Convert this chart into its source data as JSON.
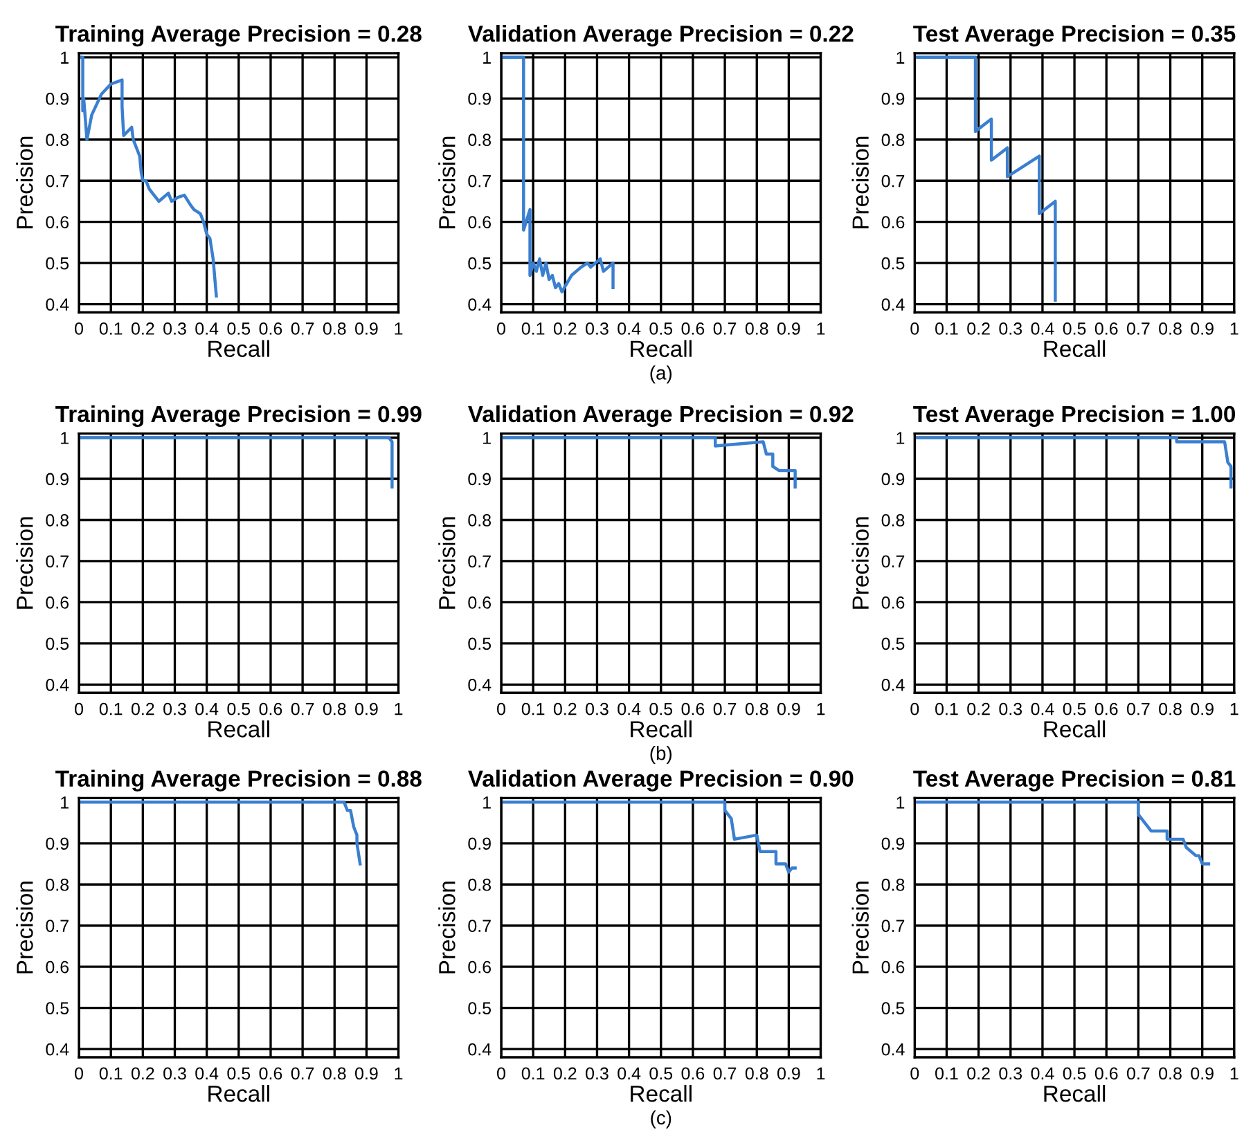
{
  "chart_data": [
    {
      "type": "line",
      "title": "Training Average Precision = 0.28",
      "xlabel": "Recall",
      "ylabel": "Precision",
      "xlim": [
        0,
        1
      ],
      "ylim": [
        0.38,
        1.01
      ],
      "xticks": [
        0,
        0.1,
        0.2,
        0.3,
        0.4,
        0.5,
        0.6,
        0.7,
        0.8,
        0.9,
        1
      ],
      "yticks": [
        0.4,
        0.5,
        0.6,
        0.7,
        0.8,
        0.9,
        1
      ],
      "grid": true,
      "legend": false,
      "series": [
        {
          "color": "#3a7fd0",
          "x": [
            0,
            0.012,
            0.012,
            0.015,
            0.02,
            0.025,
            0.04,
            0.07,
            0.1,
            0.135,
            0.135,
            0.14,
            0.165,
            0.17,
            0.19,
            0.195,
            0.2,
            0.21,
            0.22,
            0.25,
            0.28,
            0.29,
            0.31,
            0.33,
            0.35,
            0.36,
            0.38,
            0.39,
            0.4,
            0.41,
            0.42,
            0.43
          ],
          "values": [
            1,
            1,
            0.87,
            0.9,
            0.85,
            0.8,
            0.86,
            0.91,
            0.935,
            0.945,
            0.88,
            0.81,
            0.83,
            0.8,
            0.76,
            0.72,
            0.7,
            0.7,
            0.68,
            0.65,
            0.67,
            0.65,
            0.66,
            0.665,
            0.64,
            0.63,
            0.62,
            0.6,
            0.57,
            0.56,
            0.51,
            0.42
          ]
        }
      ]
    },
    {
      "type": "line",
      "title": "Validation Average Precision = 0.22",
      "xlabel": "Recall",
      "ylabel": "Precision",
      "xlim": [
        0,
        1
      ],
      "ylim": [
        0.38,
        1.01
      ],
      "xticks": [
        0,
        0.1,
        0.2,
        0.3,
        0.4,
        0.5,
        0.6,
        0.7,
        0.8,
        0.9,
        1
      ],
      "yticks": [
        0.4,
        0.5,
        0.6,
        0.7,
        0.8,
        0.9,
        1
      ],
      "grid": true,
      "legend": false,
      "annotations": [
        "(a)"
      ],
      "series": [
        {
          "color": "#3a7fd0",
          "x": [
            0,
            0.07,
            0.07,
            0.09,
            0.09,
            0.1,
            0.11,
            0.12,
            0.13,
            0.14,
            0.15,
            0.16,
            0.17,
            0.18,
            0.19,
            0.22,
            0.25,
            0.27,
            0.28,
            0.31,
            0.32,
            0.35,
            0.35
          ],
          "values": [
            1,
            1,
            0.58,
            0.63,
            0.47,
            0.5,
            0.48,
            0.51,
            0.47,
            0.5,
            0.46,
            0.47,
            0.44,
            0.45,
            0.43,
            0.47,
            0.49,
            0.5,
            0.49,
            0.51,
            0.48,
            0.5,
            0.44
          ]
        }
      ]
    },
    {
      "type": "line",
      "title": "Test Average Precision = 0.35",
      "xlabel": "Recall",
      "ylabel": "Precision",
      "xlim": [
        0,
        1
      ],
      "ylim": [
        0.38,
        1.01
      ],
      "xticks": [
        0,
        0.1,
        0.2,
        0.3,
        0.4,
        0.5,
        0.6,
        0.7,
        0.8,
        0.9,
        1
      ],
      "yticks": [
        0.4,
        0.5,
        0.6,
        0.7,
        0.8,
        0.9,
        1
      ],
      "grid": true,
      "legend": false,
      "series": [
        {
          "color": "#3a7fd0",
          "x": [
            0,
            0.19,
            0.19,
            0.24,
            0.24,
            0.29,
            0.29,
            0.39,
            0.39,
            0.44,
            0.44
          ],
          "values": [
            1,
            1,
            0.82,
            0.85,
            0.75,
            0.78,
            0.71,
            0.76,
            0.62,
            0.65,
            0.41
          ]
        }
      ]
    },
    {
      "type": "line",
      "title": "Training Average Precision = 0.99",
      "xlabel": "Recall",
      "ylabel": "Precision",
      "xlim": [
        0,
        1
      ],
      "ylim": [
        0.38,
        1.01
      ],
      "xticks": [
        0,
        0.1,
        0.2,
        0.3,
        0.4,
        0.5,
        0.6,
        0.7,
        0.8,
        0.9,
        1
      ],
      "yticks": [
        0.4,
        0.5,
        0.6,
        0.7,
        0.8,
        0.9,
        1
      ],
      "grid": true,
      "legend": false,
      "series": [
        {
          "color": "#3a7fd0",
          "x": [
            0,
            0.97,
            0.98,
            0.98
          ],
          "values": [
            1,
            1,
            0.99,
            0.88
          ]
        }
      ]
    },
    {
      "type": "line",
      "title": "Validation Average Precision = 0.92",
      "xlabel": "Recall",
      "ylabel": "Precision",
      "xlim": [
        0,
        1
      ],
      "ylim": [
        0.38,
        1.01
      ],
      "xticks": [
        0,
        0.1,
        0.2,
        0.3,
        0.4,
        0.5,
        0.6,
        0.7,
        0.8,
        0.9,
        1
      ],
      "yticks": [
        0.4,
        0.5,
        0.6,
        0.7,
        0.8,
        0.9,
        1
      ],
      "grid": true,
      "legend": false,
      "annotations": [
        "(b)"
      ],
      "series": [
        {
          "color": "#3a7fd0",
          "x": [
            0,
            0.67,
            0.67,
            0.82,
            0.83,
            0.85,
            0.85,
            0.87,
            0.92,
            0.92
          ],
          "values": [
            1,
            1,
            0.98,
            0.99,
            0.96,
            0.96,
            0.93,
            0.92,
            0.92,
            0.88
          ]
        }
      ]
    },
    {
      "type": "line",
      "title": "Test Average Precision = 1.00",
      "xlabel": "Recall",
      "ylabel": "Precision",
      "xlim": [
        0,
        1
      ],
      "ylim": [
        0.38,
        1.01
      ],
      "xticks": [
        0,
        0.1,
        0.2,
        0.3,
        0.4,
        0.5,
        0.6,
        0.7,
        0.8,
        0.9,
        1
      ],
      "yticks": [
        0.4,
        0.5,
        0.6,
        0.7,
        0.8,
        0.9,
        1
      ],
      "grid": true,
      "legend": false,
      "series": [
        {
          "color": "#3a7fd0",
          "x": [
            0,
            0.82,
            0.82,
            0.97,
            0.98,
            0.99,
            0.99
          ],
          "values": [
            1,
            1,
            0.99,
            0.99,
            0.94,
            0.93,
            0.88
          ]
        }
      ]
    },
    {
      "type": "line",
      "title": "Training Average Precision = 0.88",
      "xlabel": "Recall",
      "ylabel": "Precision",
      "xlim": [
        0,
        1
      ],
      "ylim": [
        0.38,
        1.01
      ],
      "xticks": [
        0,
        0.1,
        0.2,
        0.3,
        0.4,
        0.5,
        0.6,
        0.7,
        0.8,
        0.9,
        1
      ],
      "yticks": [
        0.4,
        0.5,
        0.6,
        0.7,
        0.8,
        0.9,
        1
      ],
      "grid": true,
      "legend": false,
      "series": [
        {
          "color": "#3a7fd0",
          "x": [
            0,
            0.83,
            0.84,
            0.85,
            0.86,
            0.87,
            0.87,
            0.88
          ],
          "values": [
            1,
            1,
            0.98,
            0.98,
            0.94,
            0.92,
            0.9,
            0.85
          ]
        }
      ]
    },
    {
      "type": "line",
      "title": "Validation Average Precision = 0.90",
      "xlabel": "Recall",
      "ylabel": "Precision",
      "xlim": [
        0,
        1
      ],
      "ylim": [
        0.38,
        1.01
      ],
      "xticks": [
        0,
        0.1,
        0.2,
        0.3,
        0.4,
        0.5,
        0.6,
        0.7,
        0.8,
        0.9,
        1
      ],
      "yticks": [
        0.4,
        0.5,
        0.6,
        0.7,
        0.8,
        0.9,
        1
      ],
      "grid": true,
      "legend": false,
      "annotations": [
        "(c)"
      ],
      "series": [
        {
          "color": "#3a7fd0",
          "x": [
            0,
            0.7,
            0.7,
            0.72,
            0.73,
            0.8,
            0.81,
            0.86,
            0.86,
            0.89,
            0.9,
            0.91,
            0.92
          ],
          "values": [
            1,
            1,
            0.98,
            0.96,
            0.91,
            0.92,
            0.88,
            0.88,
            0.85,
            0.85,
            0.83,
            0.84,
            0.84
          ]
        }
      ]
    },
    {
      "type": "line",
      "title": "Test Average Precision = 0.81",
      "xlabel": "Recall",
      "ylabel": "Precision",
      "xlim": [
        0,
        1
      ],
      "ylim": [
        0.38,
        1.01
      ],
      "xticks": [
        0,
        0.1,
        0.2,
        0.3,
        0.4,
        0.5,
        0.6,
        0.7,
        0.8,
        0.9,
        1
      ],
      "yticks": [
        0.4,
        0.5,
        0.6,
        0.7,
        0.8,
        0.9,
        1
      ],
      "grid": true,
      "legend": false,
      "series": [
        {
          "color": "#3a7fd0",
          "x": [
            0,
            0.7,
            0.7,
            0.72,
            0.74,
            0.79,
            0.79,
            0.84,
            0.85,
            0.88,
            0.89,
            0.9,
            0.92
          ],
          "values": [
            1,
            1,
            0.97,
            0.95,
            0.93,
            0.93,
            0.91,
            0.91,
            0.89,
            0.87,
            0.87,
            0.85,
            0.85
          ]
        }
      ]
    }
  ]
}
